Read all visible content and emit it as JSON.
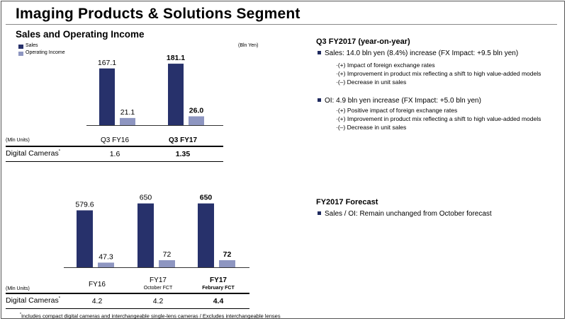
{
  "title": "Imaging Products & Solutions Segment",
  "section_title": "Sales and Operating Income",
  "unit_label": "(Bln Yen)",
  "colors": {
    "sales": "#27316b",
    "operating_income": "#8e96c1",
    "bullet": "#1f2a5f"
  },
  "legend": [
    {
      "label": "Sales",
      "color": "#27316b"
    },
    {
      "label": "Operating Income",
      "color": "#8e96c1"
    }
  ],
  "chart_data": [
    {
      "type": "bar",
      "categories": [
        "Q3 FY16",
        "Q3 FY17"
      ],
      "series": [
        {
          "name": "Sales",
          "values": [
            167.1,
            181.1
          ]
        },
        {
          "name": "Operating Income",
          "values": [
            21.1,
            26.0
          ]
        }
      ],
      "value_labels": [
        [
          "167.1",
          "181.1"
        ],
        [
          "21.1",
          "26.0"
        ]
      ],
      "bold_category": 1,
      "ylim": [
        0,
        200
      ]
    },
    {
      "type": "bar",
      "categories": [
        "FY16",
        "FY17",
        "FY17"
      ],
      "category_sublabels": [
        "",
        "October FCT",
        "February FCT"
      ],
      "series": [
        {
          "name": "Sales",
          "values": [
            579.6,
            650,
            650
          ]
        },
        {
          "name": "Operating Income",
          "values": [
            47.3,
            72,
            72
          ]
        }
      ],
      "value_labels": [
        [
          "579.6",
          "650",
          "650"
        ],
        [
          "47.3",
          "72",
          "72"
        ]
      ],
      "bold_category": 2,
      "ylim": [
        0,
        720
      ]
    }
  ],
  "table_top": {
    "unit": "(Mln Units)",
    "headers": [
      "Q3 FY16",
      "Q3 FY17"
    ],
    "row_label": "Digital Cameras",
    "row_mark": "*",
    "values": [
      "1.6",
      "1.35"
    ]
  },
  "table_bottom": {
    "unit": "(Mln Units)",
    "headers": [
      "FY16",
      "FY17",
      "FY17"
    ],
    "sub_headers": [
      "",
      "October FCT",
      "February FCT"
    ],
    "row_label": "Digital Cameras",
    "row_mark": "*",
    "values": [
      "4.2",
      "4.2",
      "4.4"
    ]
  },
  "right": {
    "q3_heading": "Q3 FY2017 (year-on-year)",
    "sales_line": "Sales: 14.0 bln yen (8.4%) increase (FX Impact: +9.5 bln yen)",
    "sales_points": [
      "·(+) Impact of foreign exchange rates",
      "·(+) Improvement in product mix reflecting a shift to high value-added models",
      "·(–) Decrease in unit sales"
    ],
    "oi_line": "OI: 4.9 bln yen increase (FX Impact: +5.0 bln yen)",
    "oi_points": [
      "·(+) Positive impact of foreign exchange rates",
      "·(+) Improvement in product mix reflecting a shift to high value-added models",
      "·(–) Decrease in unit sales"
    ],
    "forecast_heading": "FY2017 Forecast",
    "forecast_line": "Sales / OI: Remain unchanged from October forecast"
  },
  "footnote": "Includes compact digital cameras and interchangeable single-lens cameras / Excludes interchangeable lenses",
  "footnote_mark": "*"
}
